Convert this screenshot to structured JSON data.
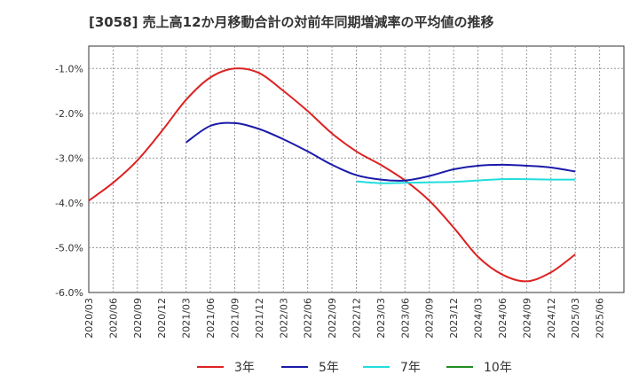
{
  "chart_data": {
    "type": "line",
    "title": "[3058]  売上高12か月移動合計の対前年同期増減率の平均値の推移",
    "xlabel": "",
    "ylabel": "",
    "ylim": [
      -6.0,
      -0.5
    ],
    "yticks": [
      "-1.0%",
      "-2.0%",
      "-3.0%",
      "-4.0%",
      "-5.0%",
      "-6.0%"
    ],
    "ytick_values": [
      -1.0,
      -2.0,
      -3.0,
      -4.0,
      -5.0,
      -6.0
    ],
    "xticks": [
      "2020/03",
      "2020/06",
      "2020/09",
      "2020/12",
      "2021/03",
      "2021/06",
      "2021/09",
      "2021/12",
      "2022/03",
      "2022/06",
      "2022/09",
      "2022/12",
      "2023/03",
      "2023/06",
      "2023/09",
      "2023/12",
      "2024/03",
      "2024/06",
      "2024/09",
      "2024/12",
      "2025/03",
      "2025/06"
    ],
    "grid": true,
    "legend_position": "bottom",
    "series": [
      {
        "name": "3年",
        "color": "#dd2222",
        "x": [
          "2020/03",
          "2020/06",
          "2020/09",
          "2020/12",
          "2021/03",
          "2021/06",
          "2021/09",
          "2021/12",
          "2022/03",
          "2022/06",
          "2022/09",
          "2022/12",
          "2023/03",
          "2023/06",
          "2023/09",
          "2023/12",
          "2024/03",
          "2024/06",
          "2024/09",
          "2024/12",
          "2025/03"
        ],
        "values": [
          -3.95,
          -3.55,
          -3.05,
          -2.4,
          -1.7,
          -1.2,
          -1.0,
          -1.1,
          -1.5,
          -1.95,
          -2.45,
          -2.85,
          -3.15,
          -3.5,
          -3.95,
          -4.55,
          -5.2,
          -5.6,
          -5.75,
          -5.55,
          -5.15
        ]
      },
      {
        "name": "5年",
        "color": "#1a1aaa",
        "x": [
          "2021/03",
          "2021/06",
          "2021/09",
          "2021/12",
          "2022/03",
          "2022/06",
          "2022/09",
          "2022/12",
          "2023/03",
          "2023/06",
          "2023/09",
          "2023/12",
          "2024/03",
          "2024/06",
          "2024/09",
          "2024/12",
          "2025/03"
        ],
        "values": [
          -2.65,
          -2.28,
          -2.22,
          -2.35,
          -2.58,
          -2.85,
          -3.15,
          -3.38,
          -3.48,
          -3.5,
          -3.4,
          -3.25,
          -3.17,
          -3.15,
          -3.17,
          -3.21,
          -3.3
        ]
      },
      {
        "name": "7年",
        "color": "#22dddd",
        "x": [
          "2022/12",
          "2023/03",
          "2023/06",
          "2023/09",
          "2023/12",
          "2024/03",
          "2024/06",
          "2024/09",
          "2024/12",
          "2025/03"
        ],
        "values": [
          -3.52,
          -3.56,
          -3.55,
          -3.54,
          -3.53,
          -3.5,
          -3.47,
          -3.47,
          -3.48,
          -3.48
        ]
      },
      {
        "name": "10年",
        "color": "#228b22",
        "x": [],
        "values": []
      }
    ]
  }
}
